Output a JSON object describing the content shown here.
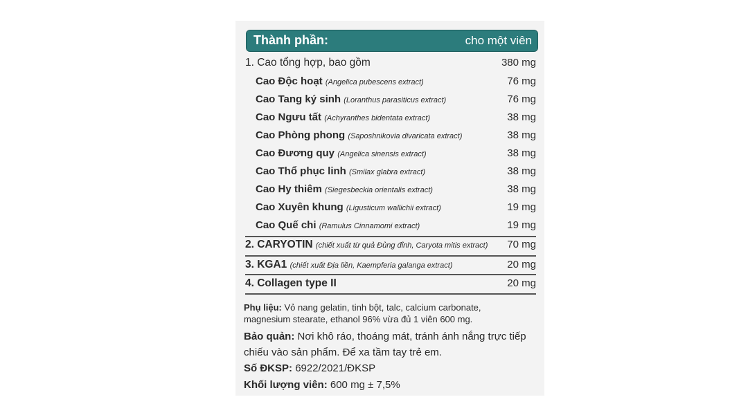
{
  "header": {
    "title": "Thành phần:",
    "per": "cho một viên"
  },
  "main_item": {
    "name": "1. Cao tổng hợp, bao gồm",
    "amount": "380 mg"
  },
  "sub_items": [
    {
      "name": "Cao Độc hoạt",
      "latin": "(Angelica pubescens extract)",
      "amount": "76 mg"
    },
    {
      "name": "Cao Tang ký sinh",
      "latin": "(Loranthus parasiticus extract)",
      "amount": "76 mg"
    },
    {
      "name": "Cao Ngưu tất",
      "latin": "(Achyranthes bidentata extract)",
      "amount": "38 mg"
    },
    {
      "name": "Cao Phòng phong",
      "latin": "(Saposhnikovia divaricata extract)",
      "amount": "38 mg"
    },
    {
      "name": "Cao Đương quy",
      "latin": "(Angelica sinensis extract)",
      "amount": "38 mg"
    },
    {
      "name": "Cao Thổ phục linh",
      "latin": "(Smilax glabra extract)",
      "amount": "38 mg"
    },
    {
      "name": "Cao Hy thiêm",
      "latin": "(Siegesbeckia orientalis extract)",
      "amount": "38 mg"
    },
    {
      "name": "Cao Xuyên khung",
      "latin": "(Ligusticum wallichii extract)",
      "amount": "19 mg"
    },
    {
      "name": "Cao Quế chi",
      "latin": "(Ramulus Cinnamomi extract)",
      "amount": "19 mg"
    }
  ],
  "other_items": [
    {
      "name": "2. CARYOTIN",
      "latin": "(chiết xuất từ quả Đủng đỉnh, Caryota mitis extract)",
      "amount": "70 mg"
    },
    {
      "name": "3. KGA1",
      "latin": "(chiết xuất Địa liền, Kaempferia galanga extract)",
      "amount": "20 mg"
    },
    {
      "name": "4. Collagen type II",
      "latin": "",
      "amount": "20 mg"
    }
  ],
  "excipients": {
    "label": "Phụ liệu:",
    "line1": "Vỏ nang gelatin, tinh bột, talc, calcium carbonate,",
    "line2": "magnesium stearate, ethanol 96% vừa đủ 1 viên 600 mg."
  },
  "storage": {
    "label": "Bảo quản:",
    "line1": "Nơi khô ráo, thoáng mát, tránh ánh nắng trực tiếp",
    "line2": "chiếu vào sản phẩm. Để xa tầm tay trẻ em."
  },
  "registration": {
    "label": "Số ĐKSP:",
    "value": "6922/2021/ĐKSP"
  },
  "weight": {
    "label": "Khối lượng viên:",
    "value": "600 mg ± 7,5%"
  },
  "colors": {
    "header_bg": "#2c7c7c",
    "panel_bg": "#f3f3f3"
  }
}
